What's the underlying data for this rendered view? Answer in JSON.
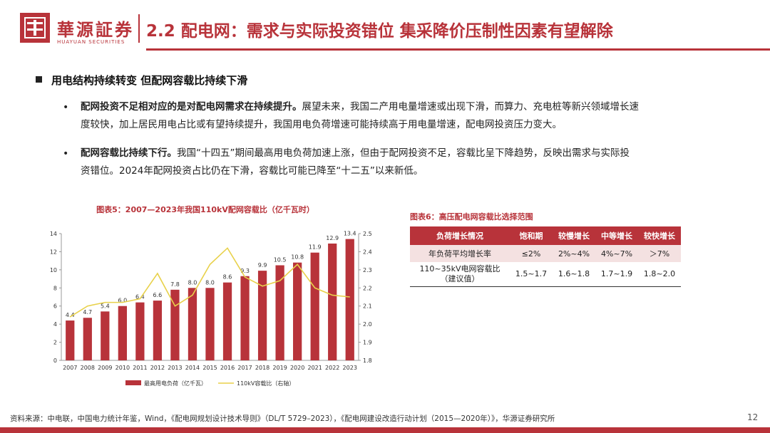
{
  "header": {
    "logo_cn": "華源証券",
    "logo_en": "HUAYUAN SECURITIES",
    "title": "2.2 配电网：需求与实际投资错位 集采降价压制性因素有望解除"
  },
  "section": {
    "heading": "用电结构持续转变 但配网容载比持续下滑",
    "bullets": [
      {
        "bold": "配网投资不足相对应的是对配电网需求在持续提升。",
        "line1_rest": "展望未来，我国二产用电量增速或出现下滑，而算力、充电桩等新兴领域增长速",
        "line2": "度较快，加上居民用电占比或有望持续提升，我国用电负荷增速可能持续高于用电量增速，配电网投资压力变大。"
      },
      {
        "bold": "配网容载比持续下行。",
        "line1_rest": "我国“十四五”期间最高用电负荷加速上涨，但由于配网投资不足，容载比呈下降趋势，反映出需求与实际投",
        "line2": "资错位。2024年配网投资占比仍在下滑，容载比可能已降至“十二五”以来新低。"
      }
    ]
  },
  "chart_data": {
    "type": "bar",
    "title": "图表5：2007—2023年我国110kV配网容载比（亿千瓦时）",
    "categories": [
      "2007",
      "2008",
      "2009",
      "2010",
      "2011",
      "2012",
      "2013",
      "2014",
      "2015",
      "2016",
      "2017",
      "2018",
      "2019",
      "2020",
      "2021",
      "2022",
      "2023"
    ],
    "series": [
      {
        "name": "最高用电负荷（亿千瓦）",
        "type": "bar",
        "axis": "left",
        "values": [
          4.4,
          4.7,
          5.4,
          6.0,
          6.4,
          6.6,
          7.8,
          8.0,
          8.0,
          8.6,
          9.3,
          9.9,
          10.5,
          10.8,
          11.9,
          12.9,
          13.4
        ]
      },
      {
        "name": "110kV容载比（右轴）",
        "type": "line",
        "axis": "right",
        "values": [
          2.04,
          2.1,
          2.12,
          2.12,
          2.14,
          2.28,
          2.1,
          2.16,
          2.33,
          2.42,
          2.26,
          2.21,
          2.24,
          2.33,
          2.2,
          2.16,
          2.15
        ]
      }
    ],
    "ylim_left": [
      0,
      14
    ],
    "yticks_left": [
      0,
      2,
      4,
      6,
      8,
      10,
      12,
      14
    ],
    "ylim_right": [
      1.8,
      2.5
    ],
    "yticks_right": [
      "1.8",
      "1.9",
      "2.0",
      "2.1",
      "2.2",
      "2.3",
      "2.4",
      "2.5"
    ],
    "colors": {
      "bar": "#b8333a",
      "line": "#e8d14a"
    },
    "legend_position": "bottom"
  },
  "table": {
    "title": "图表6：高压配电网容载比选择范围",
    "headers": [
      "负荷增长情况",
      "饱和期",
      "较慢增长",
      "中等增长",
      "较快增长"
    ],
    "rows": [
      [
        "年负荷平均增长率",
        "≤2%",
        "2%~4%",
        "4%~7%",
        "＞7%"
      ],
      [
        "110~35kV电网容载比",
        "1.5~1.7",
        "1.6~1.8",
        "1.7~1.9",
        "1.8~2.0"
      ]
    ],
    "row2_note": "（建议值）"
  },
  "footer": {
    "source": "资料来源：中电联，中国电力统计年鉴，Wind，《配电网规划设计技术导则》（DL/T 5729–2023），《配电网建设改造行动计划（2015—2020年）》，华源证券研究所",
    "page": "12"
  },
  "colors": {
    "accent": "#b8333a",
    "table_row_fill": "#f4e1e1"
  }
}
